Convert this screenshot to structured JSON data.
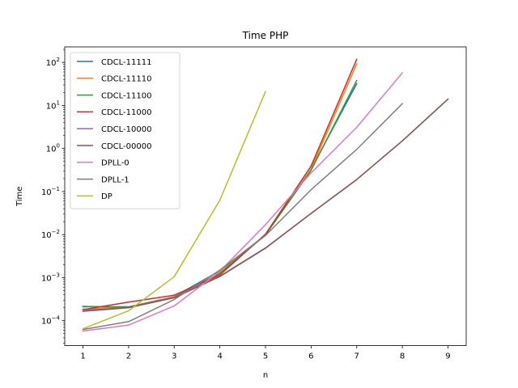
{
  "chart_data": {
    "type": "line",
    "title": "Time PHP",
    "xlabel": "n",
    "ylabel": "Time",
    "y_scale": "log",
    "xlim": [
      0.6,
      9.4
    ],
    "ylim": [
      2.63e-05,
      229
    ],
    "x_ticks": [
      1,
      2,
      3,
      4,
      5,
      6,
      7,
      8,
      9
    ],
    "y_ticks": [
      {
        "value": 0.0001,
        "base": "10",
        "exp": "−4"
      },
      {
        "value": 0.001,
        "base": "10",
        "exp": "−3"
      },
      {
        "value": 0.01,
        "base": "10",
        "exp": "−2"
      },
      {
        "value": 0.1,
        "base": "10",
        "exp": "−1"
      },
      {
        "value": 1,
        "base": "10",
        "exp": "0"
      },
      {
        "value": 10,
        "base": "10",
        "exp": "1"
      },
      {
        "value": 100,
        "base": "10",
        "exp": "2"
      }
    ],
    "grid": false,
    "legend_position": "upper-left",
    "series": [
      {
        "name": "CDCL-11111",
        "color": "#1f77b4",
        "x": [
          1,
          2,
          3,
          4,
          5,
          6,
          7
        ],
        "y": [
          0.00021,
          0.00021,
          0.00036,
          0.00145,
          0.0098,
          0.33,
          32
        ]
      },
      {
        "name": "CDCL-11110",
        "color": "#ff7f0e",
        "x": [
          1,
          2,
          3,
          4,
          5,
          6,
          7
        ],
        "y": [
          0.000185,
          0.000205,
          0.00036,
          0.0013,
          0.0098,
          0.33,
          92
        ]
      },
      {
        "name": "CDCL-11100",
        "color": "#2ca02c",
        "x": [
          1,
          2,
          3,
          4,
          5,
          6,
          7
        ],
        "y": [
          0.000215,
          0.000205,
          0.00035,
          0.00125,
          0.0098,
          0.31,
          38
        ]
      },
      {
        "name": "CDCL-11000",
        "color": "#d62728",
        "x": [
          1,
          2,
          3,
          4,
          5,
          6,
          7
        ],
        "y": [
          0.00018,
          0.00027,
          0.00039,
          0.00115,
          0.0102,
          0.39,
          118
        ]
      },
      {
        "name": "CDCL-10000",
        "color": "#9467bd",
        "x": [
          1,
          2,
          3,
          4,
          5,
          6,
          7,
          8,
          9
        ],
        "y": [
          0.000175,
          0.0002,
          0.00035,
          0.00108,
          0.0049,
          0.031,
          0.19,
          1.5,
          14
        ]
      },
      {
        "name": "CDCL-00000",
        "color": "#8c564b",
        "x": [
          1,
          2,
          3,
          4,
          5,
          6,
          7,
          8,
          9
        ],
        "y": [
          0.000165,
          0.0002,
          0.00034,
          0.00106,
          0.0048,
          0.031,
          0.19,
          1.5,
          14
        ]
      },
      {
        "name": "DPLL-0",
        "color": "#e377c2",
        "x": [
          1,
          2,
          3,
          4,
          5,
          6,
          7,
          8
        ],
        "y": [
          5.75e-05,
          7.9e-05,
          0.00022,
          0.0014,
          0.017,
          0.27,
          3.1,
          57
        ]
      },
      {
        "name": "DPLL-1",
        "color": "#7f7f7f",
        "x": [
          1,
          2,
          3,
          4,
          5,
          6,
          7,
          8
        ],
        "y": [
          6.25e-05,
          9.5e-05,
          0.00031,
          0.0015,
          0.0095,
          0.11,
          0.95,
          11
        ]
      },
      {
        "name": "DP",
        "color": "#bcbd22",
        "x": [
          1,
          2,
          3,
          4,
          5
        ],
        "y": [
          6.5e-05,
          0.00017,
          0.00105,
          0.063,
          21
        ]
      }
    ]
  }
}
